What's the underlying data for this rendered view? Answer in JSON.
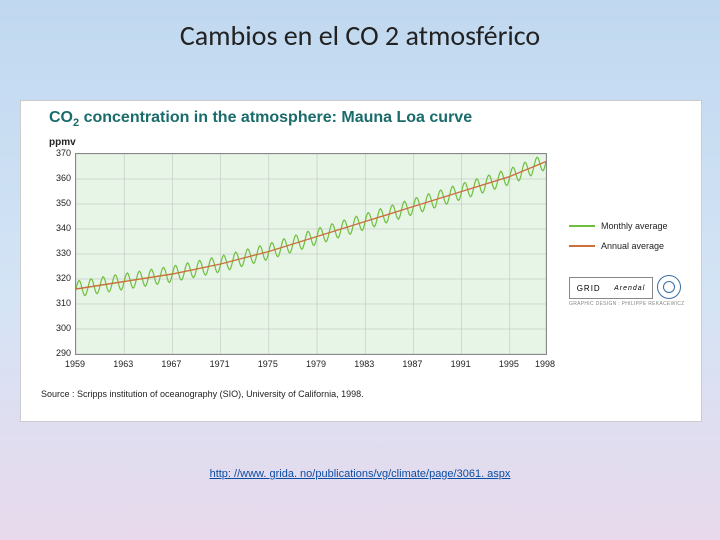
{
  "slide_title": "Cambios en el CO 2 atmosférico",
  "figure": {
    "title_html": "CO<sub>2</sub> concentration in the atmosphere: Mauna Loa curve",
    "title_color": "#1a6b6b",
    "ylabel": "ppmv",
    "background": "#ffffff",
    "plot_background": "#e6f5e6",
    "plot_border": "#888888",
    "grid_color": "#bbbbbb",
    "ylim": [
      290,
      370
    ],
    "yticks": [
      290,
      300,
      310,
      320,
      330,
      340,
      350,
      360,
      370
    ],
    "xlim": [
      1959,
      1998
    ],
    "xticks": [
      1959,
      1963,
      1967,
      1971,
      1975,
      1979,
      1983,
      1987,
      1991,
      1995,
      1998
    ],
    "legend": [
      {
        "label": "Monthly average",
        "color": "#6fbf3f"
      },
      {
        "label": "Annual average",
        "color": "#cc6f3f"
      }
    ],
    "logos": {
      "left": "GRID",
      "right": "Arendal",
      "unep": true,
      "designer": "GRAPHIC DESIGN : PHILIPPE REKACEWICZ"
    },
    "source": "Source : Scripps institution of oceanography (SIO), University of California, 1998.",
    "annual_series": [
      {
        "x": 1959,
        "y": 316
      },
      {
        "x": 1963,
        "y": 319
      },
      {
        "x": 1967,
        "y": 322
      },
      {
        "x": 1971,
        "y": 326
      },
      {
        "x": 1975,
        "y": 331
      },
      {
        "x": 1979,
        "y": 337
      },
      {
        "x": 1983,
        "y": 343
      },
      {
        "x": 1987,
        "y": 349
      },
      {
        "x": 1991,
        "y": 355
      },
      {
        "x": 1995,
        "y": 361
      },
      {
        "x": 1998,
        "y": 367
      }
    ],
    "monthly_amplitude": 3.2,
    "monthly_cycles_per_year": 1,
    "line_width_monthly": 1.2,
    "line_width_annual": 1.4,
    "tick_fontsize": 9,
    "title_fontsize": 16,
    "label_fontsize": 10
  },
  "link": "http: //www. grida. no/publications/vg/climate/page/3061. aspx"
}
